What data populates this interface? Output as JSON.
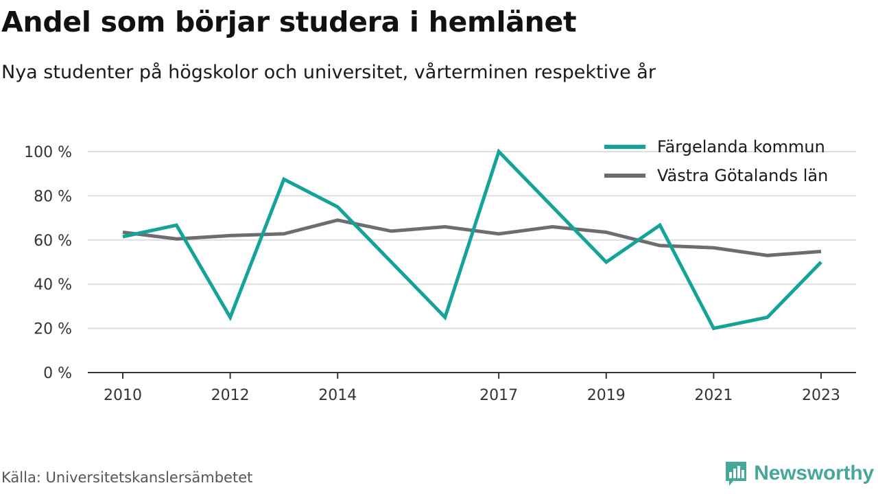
{
  "header": {
    "title": "Andel som börjar studera i hemlänet",
    "subtitle": "Nya studenter på högskolor och universitet, vårterminen respektive år"
  },
  "footer": {
    "source": "Källa: Universitetskanslersämbetet",
    "brand": "Newsworthy",
    "brand_color": "#45a89b"
  },
  "chart_data": {
    "type": "line",
    "title": "Andel som börjar studera i hemlänet",
    "subtitle": "Nya studenter på högskolor och universitet, vårterminen respektive år",
    "x": [
      2010,
      2011,
      2012,
      2013,
      2014,
      2015,
      2016,
      2017,
      2018,
      2019,
      2020,
      2021,
      2022,
      2023
    ],
    "x_ticks": [
      2010,
      2012,
      2014,
      2017,
      2019,
      2021,
      2023
    ],
    "y_ticks": [
      0,
      20,
      40,
      60,
      80,
      100
    ],
    "y_tick_suffix": " %",
    "ylim": [
      0,
      100
    ],
    "grid": true,
    "legend_position": "top-right",
    "series": [
      {
        "name": "Färgelanda kommun",
        "color": "#14a398",
        "values": [
          61.5,
          66.7,
          25,
          87.5,
          75,
          null,
          25,
          100,
          75,
          50,
          66.7,
          20,
          25,
          50
        ]
      },
      {
        "name": "Västra Götalands län",
        "color": "#6d6c72",
        "values": [
          63.5,
          60.5,
          62,
          62.8,
          69,
          64,
          66,
          62.8,
          66,
          63.5,
          57.5,
          56.5,
          53,
          54.8
        ]
      }
    ]
  }
}
